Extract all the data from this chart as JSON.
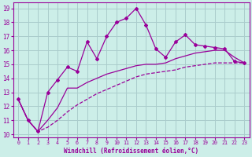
{
  "xlabel": "Windchill (Refroidissement éolien,°C)",
  "background_color": "#cceee8",
  "grid_color": "#aacccc",
  "line_color": "#990099",
  "xlim": [
    -0.5,
    23.5
  ],
  "ylim": [
    9.8,
    19.4
  ],
  "yticks": [
    10,
    11,
    12,
    13,
    14,
    15,
    16,
    17,
    18,
    19
  ],
  "xticks": [
    0,
    1,
    2,
    3,
    4,
    5,
    6,
    7,
    8,
    9,
    10,
    11,
    12,
    13,
    14,
    15,
    16,
    17,
    18,
    19,
    20,
    21,
    22,
    23
  ],
  "line1_x": [
    0,
    1,
    2,
    3,
    4,
    5,
    6,
    7,
    8,
    9,
    10,
    11,
    12,
    13,
    14,
    15,
    16,
    17,
    18,
    19,
    20,
    21,
    22,
    23
  ],
  "line1_y": [
    12.5,
    11.0,
    10.2,
    13.0,
    13.9,
    14.8,
    14.5,
    16.6,
    15.4,
    17.0,
    18.0,
    18.3,
    19.0,
    17.8,
    16.1,
    15.5,
    16.6,
    17.1,
    16.4,
    16.3,
    16.2,
    16.1,
    15.2,
    15.1
  ],
  "line2_x": [
    0,
    1,
    2,
    3,
    4,
    5,
    6,
    7,
    8,
    9,
    10,
    11,
    12,
    13,
    14,
    15,
    16,
    17,
    18,
    19,
    20,
    21,
    22,
    23
  ],
  "line2_y": [
    12.5,
    11.0,
    10.2,
    10.5,
    11.0,
    11.6,
    12.1,
    12.5,
    12.9,
    13.2,
    13.5,
    13.8,
    14.1,
    14.3,
    14.4,
    14.5,
    14.6,
    14.8,
    14.9,
    15.0,
    15.1,
    15.1,
    15.1,
    15.1
  ],
  "line3_x": [
    0,
    1,
    2,
    3,
    4,
    5,
    6,
    7,
    8,
    9,
    10,
    11,
    12,
    13,
    14,
    15,
    16,
    17,
    18,
    19,
    20,
    21,
    22,
    23
  ],
  "line3_y": [
    12.5,
    11.0,
    10.2,
    11.0,
    11.9,
    13.3,
    13.3,
    13.7,
    14.0,
    14.3,
    14.5,
    14.7,
    14.9,
    15.0,
    15.0,
    15.1,
    15.4,
    15.6,
    15.8,
    15.9,
    16.0,
    16.0,
    15.5,
    15.1
  ]
}
